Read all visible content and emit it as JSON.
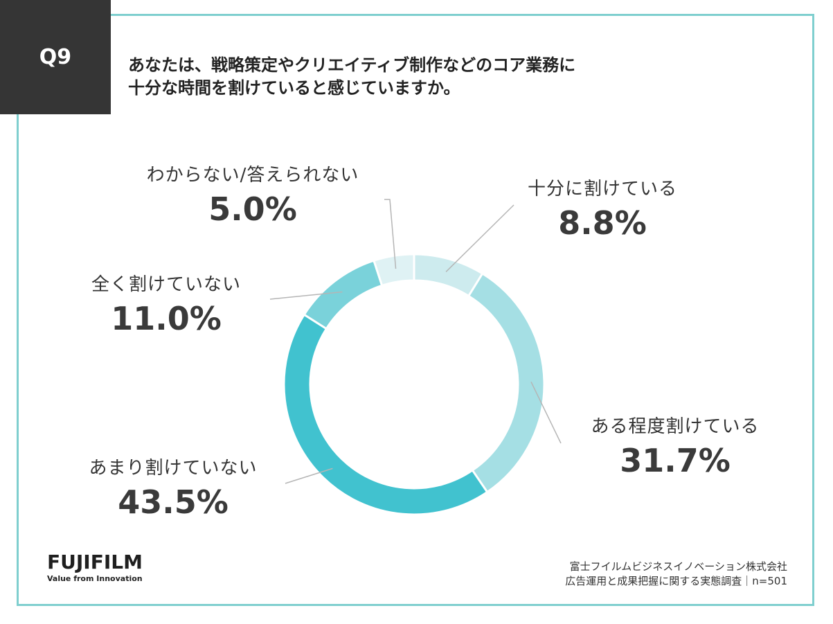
{
  "question": {
    "number": "Q9",
    "line1": "あなたは、戦略策定やクリエイティブ制作などのコア業務に",
    "line2": "十分な時間を割けていると感じていますか。"
  },
  "chart_data": {
    "type": "pie",
    "donut": true,
    "start": "12 o'clock",
    "direction": "clockwise",
    "slices": [
      {
        "label": "十分に割けている",
        "value": 8.8,
        "value_label": "8.8%",
        "color": "#cdebee"
      },
      {
        "label": "ある程度割けている",
        "value": 31.7,
        "value_label": "31.7%",
        "color": "#a5dfe4"
      },
      {
        "label": "あまり割けていない",
        "value": 43.5,
        "value_label": "43.5%",
        "color": "#41c2cf"
      },
      {
        "label": "全く割けていない",
        "value": 11.0,
        "value_label": "11.0%",
        "color": "#7ad2da"
      },
      {
        "label": "わからない/答えられない",
        "value": 5.0,
        "value_label": "5.0%",
        "color": "#dff2f4"
      }
    ]
  },
  "logo": {
    "brand": "FUJIFILM",
    "tagline": "Value from Innovation"
  },
  "source": {
    "line1": "富士フイルムビジネスイノベーション株式会社",
    "line2": "広告運用と成果把握に関する実態調査｜n=501"
  },
  "colors": {
    "frame": "#7fcfcf",
    "badge": "#353535",
    "leader_line": "#b5b5b5"
  }
}
